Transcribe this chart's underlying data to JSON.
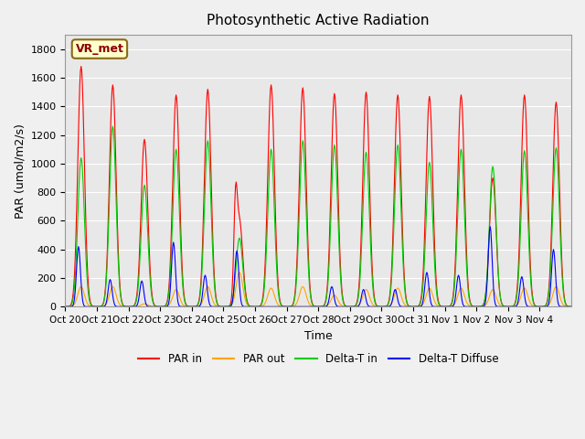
{
  "title": "Photosynthetic Active Radiation",
  "ylabel": "PAR (umol/m2/s)",
  "xlabel": "Time",
  "annotation": "VR_met",
  "background_color": "#f0f0f0",
  "plot_bg_color": "#e8e8e8",
  "ylim": [
    0,
    1900
  ],
  "yticks": [
    0,
    200,
    400,
    600,
    800,
    1000,
    1200,
    1400,
    1600,
    1800
  ],
  "xtick_labels": [
    "Oct 20",
    "Oct 21",
    "Oct 22",
    "Oct 23",
    "Oct 24",
    "Oct 25",
    "Oct 26",
    "Oct 27",
    "Oct 28",
    "Oct 29",
    "Oct 30",
    "Oct 31",
    "Nov 1",
    "Nov 2",
    "Nov 3",
    "Nov 4"
  ],
  "series": {
    "PAR_in": {
      "color": "#ff0000",
      "label": "PAR in",
      "peaks": [
        1680,
        1550,
        1170,
        1480,
        1520,
        600,
        1550,
        1530,
        1490,
        1500,
        1480,
        1470,
        1480,
        900,
        1480,
        1430
      ],
      "secondary_peaks": [
        0,
        0,
        0,
        0,
        0,
        550,
        0,
        0,
        0,
        0,
        0,
        0,
        0,
        0,
        0,
        0
      ]
    },
    "PAR_out": {
      "color": "#ffa500",
      "label": "PAR out",
      "peaks": [
        140,
        140,
        20,
        120,
        140,
        240,
        130,
        140,
        80,
        120,
        130,
        130,
        130,
        120,
        130,
        140
      ]
    },
    "Delta_T_in": {
      "color": "#00cc00",
      "label": "Delta-T in",
      "peaks": [
        1040,
        1260,
        850,
        1100,
        1160,
        480,
        1100,
        1160,
        1130,
        1080,
        1130,
        1010,
        1100,
        980,
        1090,
        1110
      ]
    },
    "Delta_T_diffuse": {
      "color": "#0000ff",
      "label": "Delta-T Diffuse",
      "peaks": [
        420,
        190,
        180,
        450,
        220,
        390,
        0,
        0,
        140,
        120,
        120,
        240,
        220,
        560,
        210,
        400
      ]
    }
  }
}
